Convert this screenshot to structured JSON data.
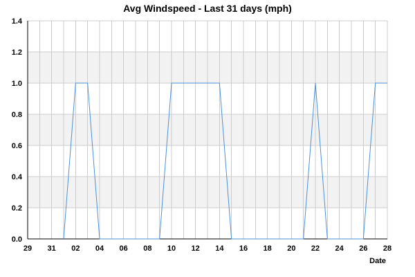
{
  "chart_data": {
    "type": "line",
    "title": "Avg Windspeed - Last 31 days (mph)",
    "xlabel": "Date",
    "ylabel": "",
    "ylim": [
      0,
      1.4
    ],
    "yticks": [
      "0.0",
      "0.2",
      "0.4",
      "0.6",
      "0.8",
      "1.0",
      "1.2",
      "1.4"
    ],
    "xticks": [
      "29",
      "31",
      "02",
      "04",
      "06",
      "08",
      "10",
      "12",
      "14",
      "16",
      "18",
      "20",
      "22",
      "24",
      "26",
      "28"
    ],
    "x_range": [
      "2023-01-29",
      "2023-02-28"
    ],
    "grid": true,
    "band_color": "#f2f2f2",
    "grid_color": "#cccccc",
    "series": [
      {
        "color": "#4a90d9",
        "x": [
          "2023-01-29",
          "2023-01-30",
          "2023-01-31",
          "2023-02-01",
          "2023-02-02",
          "2023-02-03",
          "2023-02-04",
          "2023-02-05",
          "2023-02-06",
          "2023-02-07",
          "2023-02-08",
          "2023-02-09",
          "2023-02-10",
          "2023-02-11",
          "2023-02-12",
          "2023-02-13",
          "2023-02-14",
          "2023-02-15",
          "2023-02-16",
          "2023-02-17",
          "2023-02-18",
          "2023-02-19",
          "2023-02-20",
          "2023-02-21",
          "2023-02-22",
          "2023-02-23",
          "2023-02-24",
          "2023-02-25",
          "2023-02-26",
          "2023-02-27",
          "2023-02-28"
        ],
        "values": [
          null,
          null,
          null,
          0.0,
          1.0,
          1.0,
          0.0,
          0.0,
          0.0,
          0.0,
          0.0,
          0.0,
          1.0,
          1.0,
          1.0,
          1.0,
          1.0,
          0.0,
          0.0,
          0.0,
          0.0,
          0.0,
          0.0,
          0.0,
          1.0,
          0.0,
          0.0,
          0.0,
          0.0,
          1.0,
          1.0
        ]
      }
    ]
  }
}
